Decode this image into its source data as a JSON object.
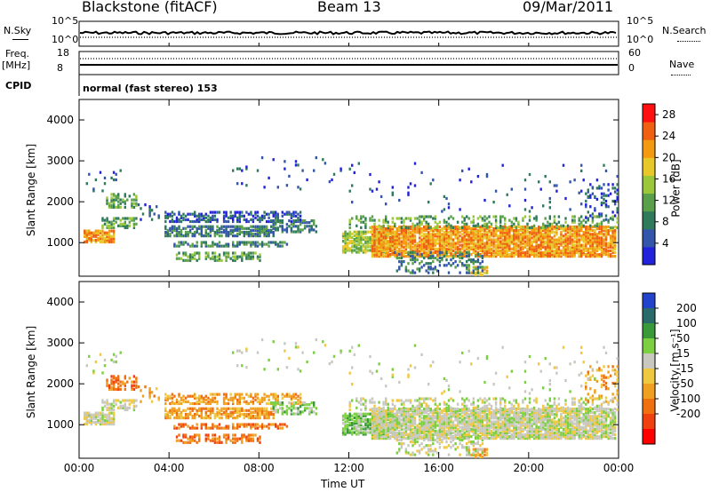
{
  "header": {
    "site": "Blackstone (fitACF)",
    "beam": "Beam 13",
    "date": "09/Mar/2011"
  },
  "params_panel": {
    "nsky_label": "N.Sky",
    "nsearch_label": "N.Search",
    "count_ticks": [
      "10^5",
      "10^0"
    ],
    "count_ticks_right": [
      "10^5",
      "10^0"
    ],
    "freq_label": "Freq.",
    "freq_unit": "[MHz]",
    "freq_ticks": [
      "18",
      "8"
    ],
    "nave_label": "Nave",
    "nave_ticks": [
      "60",
      "0"
    ],
    "cpid_label": "CPID",
    "cpid_value": "normal (fast stereo) 153"
  },
  "colors": {
    "power_scale": [
      "#2222dd",
      "#3355aa",
      "#2f7a5a",
      "#5aa04a",
      "#9ac83a",
      "#e8c828",
      "#f49a10",
      "#f06010",
      "#ff1010"
    ],
    "velocity_scale": [
      "#2244cc",
      "#2a6a6a",
      "#3a9a3a",
      "#7ccf40",
      "#c8c8c0",
      "#f0c840",
      "#f0a020",
      "#f07010",
      "#f04010",
      "#ff0000"
    ]
  },
  "chart_data": [
    {
      "type": "heatmap",
      "title": "Power",
      "xlabel": "Time UT",
      "ylabel": "Slant Range [km]",
      "x_ticks": [
        "00:00",
        "04:00",
        "08:00",
        "12:00",
        "16:00",
        "20:00",
        "00:00"
      ],
      "xlim_hours": [
        0,
        24
      ],
      "ylim": [
        180,
        4500
      ],
      "y_ticks": [
        1000,
        2000,
        3000,
        4000
      ],
      "colorbar_label": "Power [dB]",
      "colorbar_ticks": [
        4,
        8,
        12,
        16,
        20,
        24,
        28
      ],
      "colorbar_range": [
        0,
        30
      ]
    },
    {
      "type": "heatmap",
      "title": "Velocity",
      "xlabel": "Time UT",
      "ylabel": "Slant Range [km]",
      "x_ticks": [
        "00:00",
        "04:00",
        "08:00",
        "12:00",
        "16:00",
        "20:00",
        "00:00"
      ],
      "xlim_hours": [
        0,
        24
      ],
      "ylim": [
        180,
        4500
      ],
      "y_ticks": [
        1000,
        2000,
        3000,
        4000
      ],
      "colorbar_label": "Velocity [m s⁻¹]",
      "colorbar_ticks": [
        "200",
        "100",
        "50",
        "15",
        "-15",
        "-50",
        "-100",
        "-200"
      ]
    }
  ]
}
